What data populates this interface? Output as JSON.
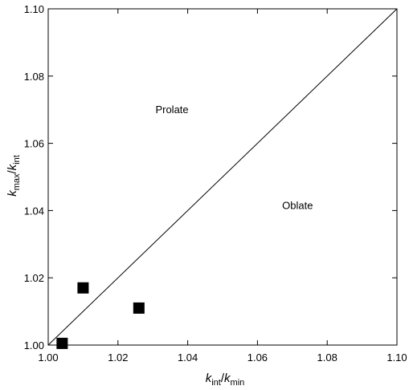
{
  "chart_data": {
    "type": "scatter",
    "title": "",
    "xlabel": {
      "main": "k",
      "sub": "int",
      "sep": "/",
      "main2": "k",
      "sub2": "min"
    },
    "ylabel": {
      "main": "k",
      "sub": "max",
      "sep": "/",
      "main2": "k",
      "sub2": "int"
    },
    "xlim": [
      1.0,
      1.1
    ],
    "ylim": [
      1.0,
      1.1
    ],
    "x_ticks": [
      "1.00",
      "1.02",
      "1.04",
      "1.06",
      "1.08",
      "1.10"
    ],
    "y_ticks": [
      "1.00",
      "1.02",
      "1.04",
      "1.06",
      "1.08",
      "1.10"
    ],
    "grid": false,
    "reference_line": {
      "from": [
        1.0,
        1.0
      ],
      "to": [
        1.1,
        1.1
      ]
    },
    "marker": "filled-square",
    "marker_color": "#000000",
    "points": [
      {
        "x": 1.004,
        "y": 1.0005
      },
      {
        "x": 1.01,
        "y": 1.017
      },
      {
        "x": 1.026,
        "y": 1.011
      }
    ],
    "annotations": [
      {
        "text": "Prolate",
        "x": 1.0355,
        "y": 1.069
      },
      {
        "text": "Oblate",
        "x": 1.0715,
        "y": 1.0405
      }
    ]
  }
}
